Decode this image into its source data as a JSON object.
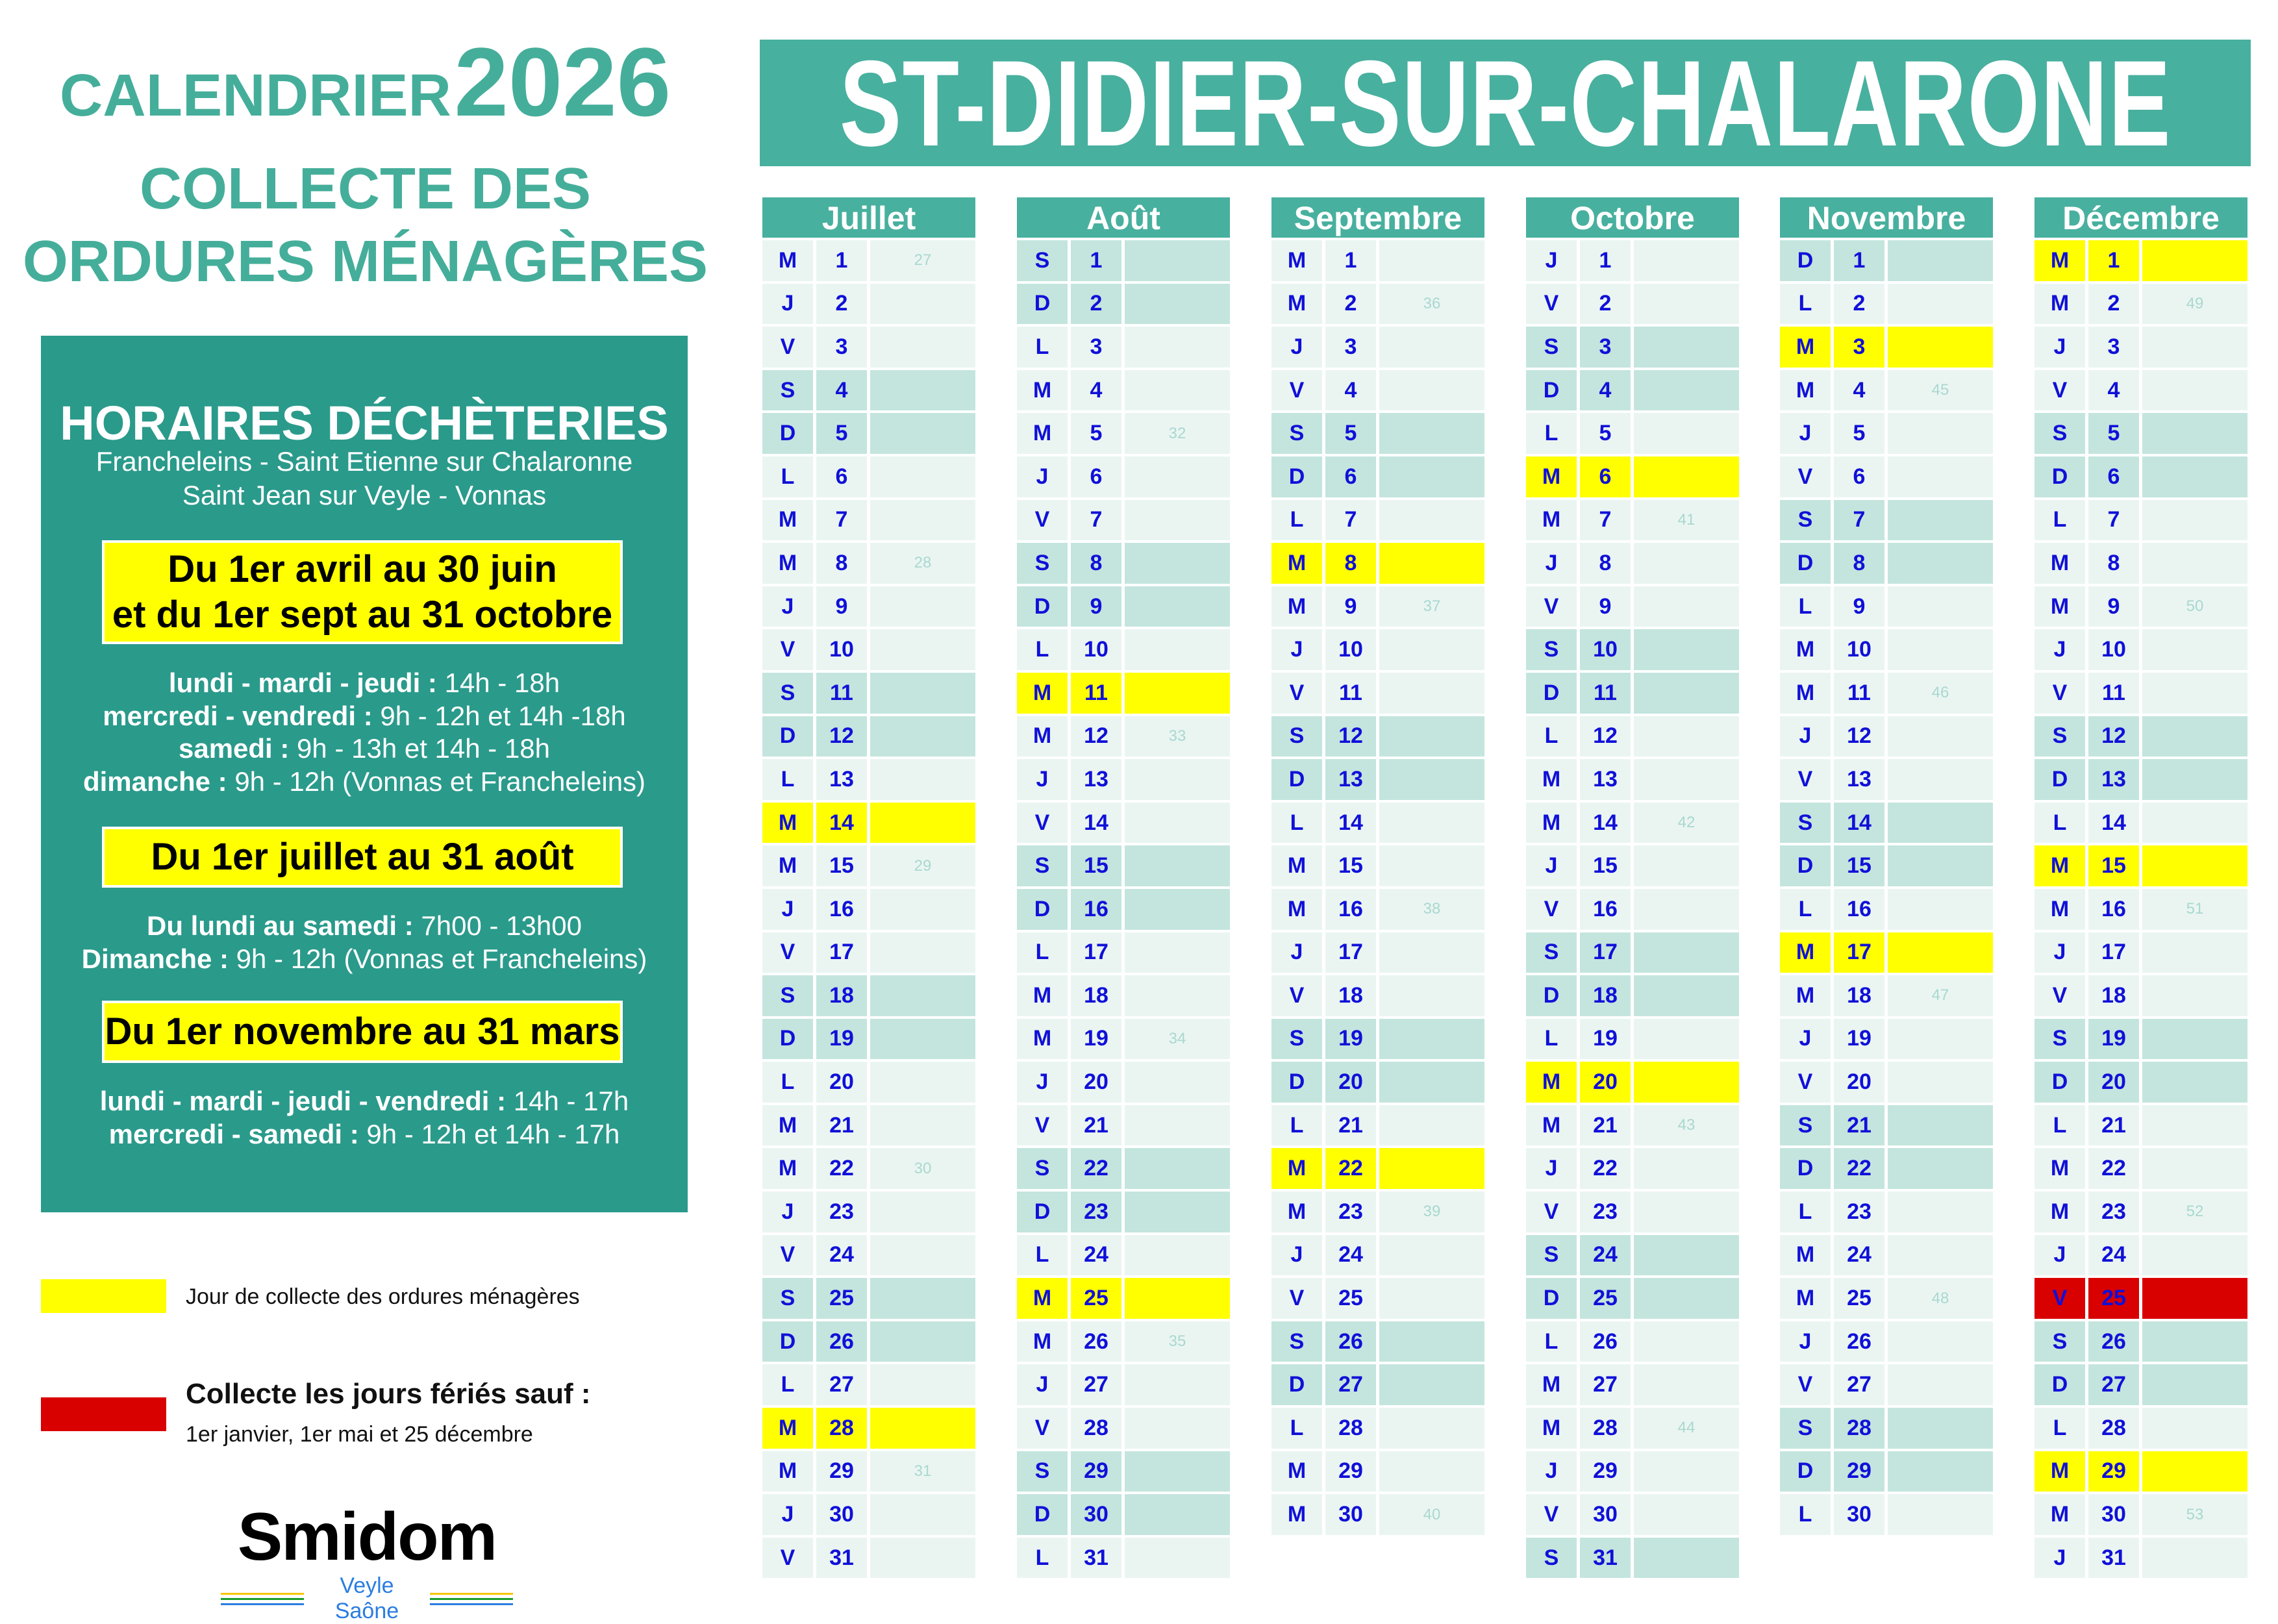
{
  "header": {
    "calendar_label": "CALENDRIER",
    "year": "2026",
    "subtitle_line1": "COLLECTE DES",
    "subtitle_line2": "ORDURES MÉNAGÈRES",
    "town": "ST-DIDIER-SUR-CHALARONE"
  },
  "hours": {
    "title": "HORAIRES DÉCHÈTERIES",
    "sites_line1": "Francheleins - Saint Etienne sur Chalaronne",
    "sites_line2": "Saint Jean sur Veyle - Vonnas",
    "periods": [
      {
        "title_lines": [
          "Du 1er avril au 30 juin",
          "et du 1er sept au 31 octobre"
        ],
        "lines": [
          {
            "days": "lundi - mardi - jeudi :",
            "time": " 14h - 18h"
          },
          {
            "days": "mercredi - vendredi :",
            "time": " 9h - 12h et 14h -18h"
          },
          {
            "days": "samedi :",
            "time": " 9h - 13h et 14h - 18h"
          },
          {
            "days": "dimanche :",
            "time": " 9h - 12h (Vonnas et Francheleins)"
          }
        ]
      },
      {
        "title_lines": [
          "Du 1er juillet au 31 août"
        ],
        "lines": [
          {
            "days": "Du lundi au samedi :",
            "time": " 7h00 - 13h00"
          },
          {
            "days": "Dimanche :",
            "time": " 9h - 12h (Vonnas et Francheleins)"
          }
        ]
      },
      {
        "title_lines": [
          "Du 1er novembre au 31 mars"
        ],
        "lines": [
          {
            "days": "lundi - mardi - jeudi - vendredi :",
            "time": " 14h - 17h"
          },
          {
            "days": "mercredi - samedi :",
            "time": " 9h - 12h et 14h - 17h"
          }
        ]
      }
    ]
  },
  "legend": {
    "collection_label": "Jour de collecte des ordures ménagères",
    "holiday_title": "Collecte les jours fériés sauf :",
    "holiday_detail": "1er janvier, 1er mai et 25 décembre",
    "colors": {
      "collection": "#ffff00",
      "holiday": "#d90000",
      "weekend": "#c3e5de",
      "weekday": "#eaf5f2",
      "header": "#48b09e",
      "day_text": "#1010d8"
    }
  },
  "logo": {
    "name": "Smidom",
    "tagline": "Veyle Saône"
  },
  "months": [
    {
      "name": "Juillet",
      "collection_days": [
        14,
        28
      ],
      "holiday_days": [],
      "days": [
        [
          "M",
          "1",
          "27"
        ],
        [
          "J",
          "2"
        ],
        [
          "V",
          "3"
        ],
        [
          "S",
          "4"
        ],
        [
          "D",
          "5"
        ],
        [
          "L",
          "6"
        ],
        [
          "M",
          "7"
        ],
        [
          "M",
          "8",
          "28"
        ],
        [
          "J",
          "9"
        ],
        [
          "V",
          "10"
        ],
        [
          "S",
          "11"
        ],
        [
          "D",
          "12"
        ],
        [
          "L",
          "13"
        ],
        [
          "M",
          "14"
        ],
        [
          "M",
          "15",
          "29"
        ],
        [
          "J",
          "16"
        ],
        [
          "V",
          "17"
        ],
        [
          "S",
          "18"
        ],
        [
          "D",
          "19"
        ],
        [
          "L",
          "20"
        ],
        [
          "M",
          "21"
        ],
        [
          "M",
          "22",
          "30"
        ],
        [
          "J",
          "23"
        ],
        [
          "V",
          "24"
        ],
        [
          "S",
          "25"
        ],
        [
          "D",
          "26"
        ],
        [
          "L",
          "27"
        ],
        [
          "M",
          "28"
        ],
        [
          "M",
          "29",
          "31"
        ],
        [
          "J",
          "30"
        ],
        [
          "V",
          "31"
        ]
      ]
    },
    {
      "name": "Août",
      "collection_days": [
        11,
        25
      ],
      "holiday_days": [],
      "days": [
        [
          "S",
          "1"
        ],
        [
          "D",
          "2"
        ],
        [
          "L",
          "3"
        ],
        [
          "M",
          "4"
        ],
        [
          "M",
          "5",
          "32"
        ],
        [
          "J",
          "6"
        ],
        [
          "V",
          "7"
        ],
        [
          "S",
          "8"
        ],
        [
          "D",
          "9"
        ],
        [
          "L",
          "10"
        ],
        [
          "M",
          "11"
        ],
        [
          "M",
          "12",
          "33"
        ],
        [
          "J",
          "13"
        ],
        [
          "V",
          "14"
        ],
        [
          "S",
          "15"
        ],
        [
          "D",
          "16"
        ],
        [
          "L",
          "17"
        ],
        [
          "M",
          "18"
        ],
        [
          "M",
          "19",
          "34"
        ],
        [
          "J",
          "20"
        ],
        [
          "V",
          "21"
        ],
        [
          "S",
          "22"
        ],
        [
          "D",
          "23"
        ],
        [
          "L",
          "24"
        ],
        [
          "M",
          "25"
        ],
        [
          "M",
          "26",
          "35"
        ],
        [
          "J",
          "27"
        ],
        [
          "V",
          "28"
        ],
        [
          "S",
          "29"
        ],
        [
          "D",
          "30"
        ],
        [
          "L",
          "31"
        ]
      ]
    },
    {
      "name": "Septembre",
      "collection_days": [
        8,
        22
      ],
      "holiday_days": [],
      "days": [
        [
          "M",
          "1"
        ],
        [
          "M",
          "2",
          "36"
        ],
        [
          "J",
          "3"
        ],
        [
          "V",
          "4"
        ],
        [
          "S",
          "5"
        ],
        [
          "D",
          "6"
        ],
        [
          "L",
          "7"
        ],
        [
          "M",
          "8"
        ],
        [
          "M",
          "9",
          "37"
        ],
        [
          "J",
          "10"
        ],
        [
          "V",
          "11"
        ],
        [
          "S",
          "12"
        ],
        [
          "D",
          "13"
        ],
        [
          "L",
          "14"
        ],
        [
          "M",
          "15"
        ],
        [
          "M",
          "16",
          "38"
        ],
        [
          "J",
          "17"
        ],
        [
          "V",
          "18"
        ],
        [
          "S",
          "19"
        ],
        [
          "D",
          "20"
        ],
        [
          "L",
          "21"
        ],
        [
          "M",
          "22"
        ],
        [
          "M",
          "23",
          "39"
        ],
        [
          "J",
          "24"
        ],
        [
          "V",
          "25"
        ],
        [
          "S",
          "26"
        ],
        [
          "D",
          "27"
        ],
        [
          "L",
          "28"
        ],
        [
          "M",
          "29"
        ],
        [
          "M",
          "30",
          "40"
        ]
      ]
    },
    {
      "name": "Octobre",
      "collection_days": [
        6,
        20
      ],
      "holiday_days": [],
      "days": [
        [
          "J",
          "1"
        ],
        [
          "V",
          "2"
        ],
        [
          "S",
          "3"
        ],
        [
          "D",
          "4"
        ],
        [
          "L",
          "5"
        ],
        [
          "M",
          "6"
        ],
        [
          "M",
          "7",
          "41"
        ],
        [
          "J",
          "8"
        ],
        [
          "V",
          "9"
        ],
        [
          "S",
          "10"
        ],
        [
          "D",
          "11"
        ],
        [
          "L",
          "12"
        ],
        [
          "M",
          "13"
        ],
        [
          "M",
          "14",
          "42"
        ],
        [
          "J",
          "15"
        ],
        [
          "V",
          "16"
        ],
        [
          "S",
          "17"
        ],
        [
          "D",
          "18"
        ],
        [
          "L",
          "19"
        ],
        [
          "M",
          "20"
        ],
        [
          "M",
          "21",
          "43"
        ],
        [
          "J",
          "22"
        ],
        [
          "V",
          "23"
        ],
        [
          "S",
          "24"
        ],
        [
          "D",
          "25"
        ],
        [
          "L",
          "26"
        ],
        [
          "M",
          "27"
        ],
        [
          "M",
          "28",
          "44"
        ],
        [
          "J",
          "29"
        ],
        [
          "V",
          "30"
        ],
        [
          "S",
          "31"
        ]
      ]
    },
    {
      "name": "Novembre",
      "collection_days": [
        3,
        17
      ],
      "holiday_days": [],
      "days": [
        [
          "D",
          "1"
        ],
        [
          "L",
          "2"
        ],
        [
          "M",
          "3"
        ],
        [
          "M",
          "4",
          "45"
        ],
        [
          "J",
          "5"
        ],
        [
          "V",
          "6"
        ],
        [
          "S",
          "7"
        ],
        [
          "D",
          "8"
        ],
        [
          "L",
          "9"
        ],
        [
          "M",
          "10"
        ],
        [
          "M",
          "11",
          "46"
        ],
        [
          "J",
          "12"
        ],
        [
          "V",
          "13"
        ],
        [
          "S",
          "14"
        ],
        [
          "D",
          "15"
        ],
        [
          "L",
          "16"
        ],
        [
          "M",
          "17"
        ],
        [
          "M",
          "18",
          "47"
        ],
        [
          "J",
          "19"
        ],
        [
          "V",
          "20"
        ],
        [
          "S",
          "21"
        ],
        [
          "D",
          "22"
        ],
        [
          "L",
          "23"
        ],
        [
          "M",
          "24"
        ],
        [
          "M",
          "25",
          "48"
        ],
        [
          "J",
          "26"
        ],
        [
          "V",
          "27"
        ],
        [
          "S",
          "28"
        ],
        [
          "D",
          "29"
        ],
        [
          "L",
          "30"
        ]
      ]
    },
    {
      "name": "Décembre",
      "collection_days": [
        1,
        15,
        29
      ],
      "holiday_days": [
        25
      ],
      "days": [
        [
          "M",
          "1"
        ],
        [
          "M",
          "2",
          "49"
        ],
        [
          "J",
          "3"
        ],
        [
          "V",
          "4"
        ],
        [
          "S",
          "5"
        ],
        [
          "D",
          "6"
        ],
        [
          "L",
          "7"
        ],
        [
          "M",
          "8"
        ],
        [
          "M",
          "9",
          "50"
        ],
        [
          "J",
          "10"
        ],
        [
          "V",
          "11"
        ],
        [
          "S",
          "12"
        ],
        [
          "D",
          "13"
        ],
        [
          "L",
          "14"
        ],
        [
          "M",
          "15"
        ],
        [
          "M",
          "16",
          "51"
        ],
        [
          "J",
          "17"
        ],
        [
          "V",
          "18"
        ],
        [
          "S",
          "19"
        ],
        [
          "D",
          "20"
        ],
        [
          "L",
          "21"
        ],
        [
          "M",
          "22"
        ],
        [
          "M",
          "23",
          "52"
        ],
        [
          "J",
          "24"
        ],
        [
          "V",
          "25"
        ],
        [
          "S",
          "26"
        ],
        [
          "D",
          "27"
        ],
        [
          "L",
          "28"
        ],
        [
          "M",
          "29"
        ],
        [
          "M",
          "30",
          "53"
        ],
        [
          "J",
          "31"
        ]
      ]
    }
  ]
}
